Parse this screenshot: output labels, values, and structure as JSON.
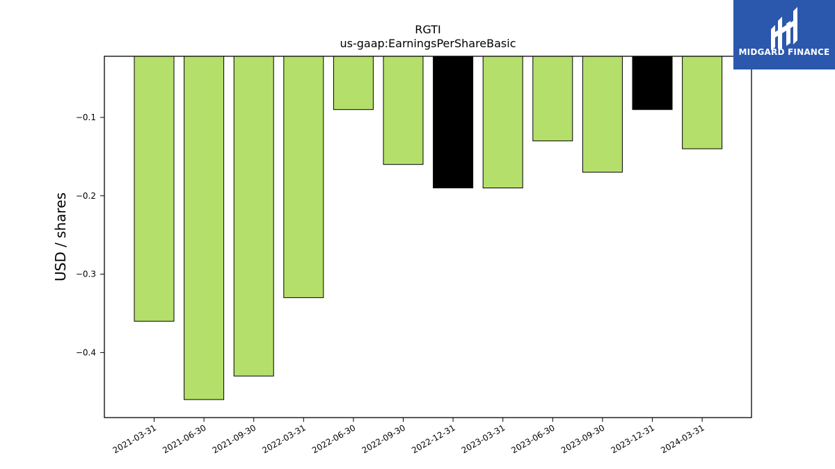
{
  "chart_data": {
    "type": "bar",
    "title": "RGTI",
    "subtitle": "us-gaap:EarningsPerShareBasic",
    "xlabel": "",
    "ylabel": "USD / shares",
    "categories": [
      "2021-03-31",
      "2021-06-30",
      "2021-09-30",
      "2022-03-31",
      "2022-06-30",
      "2022-09-30",
      "2022-12-31",
      "2023-03-31",
      "2023-06-30",
      "2023-09-30",
      "2023-12-31",
      "2024-03-31"
    ],
    "values": [
      -0.36,
      -0.46,
      -0.43,
      -0.33,
      -0.09,
      -0.16,
      -0.19,
      -0.19,
      -0.13,
      -0.17,
      -0.09,
      -0.14
    ],
    "bar_colors": [
      "#b5df6b",
      "#b5df6b",
      "#b5df6b",
      "#b5df6b",
      "#b5df6b",
      "#b5df6b",
      "#000000",
      "#b5df6b",
      "#b5df6b",
      "#b5df6b",
      "#000000",
      "#b5df6b"
    ],
    "ylim": [
      -0.483,
      -0.022
    ],
    "yticks": [
      -0.4,
      -0.3,
      -0.2,
      -0.1
    ],
    "ytick_labels": [
      "−0.4",
      "−0.3",
      "−0.2",
      "−0.1"
    ],
    "grid": false,
    "legend": "none"
  },
  "logo": {
    "text": "MIDGARD FINANCE",
    "color": "#2b57ad"
  }
}
